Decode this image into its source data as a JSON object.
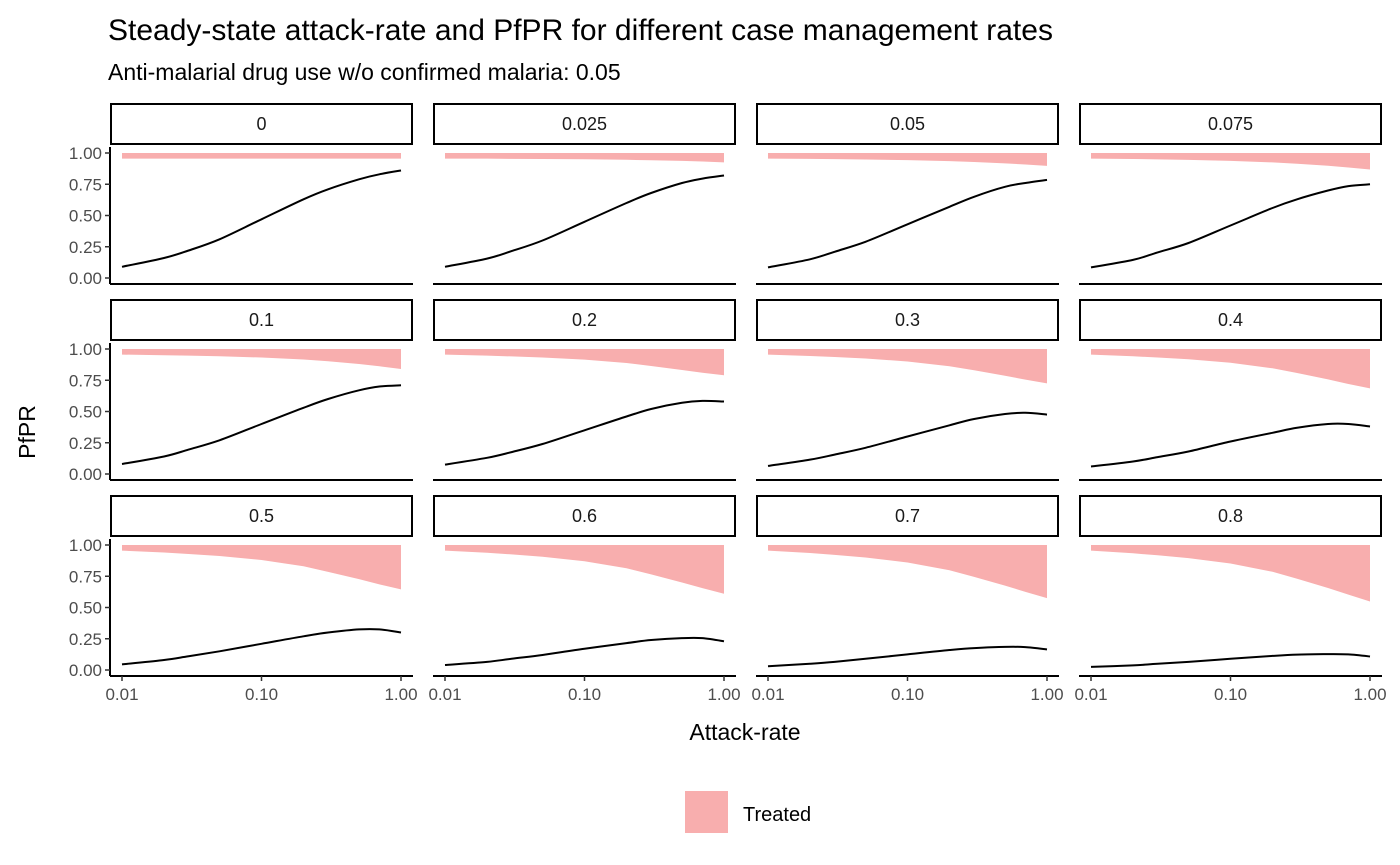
{
  "chart_data": {
    "type": "area",
    "title": "Steady-state attack-rate and PfPR for different case management rates",
    "subtitle": "Anti-malarial drug use w/o confirmed malaria: 0.05",
    "xlabel": "Attack-rate",
    "ylabel": "PfPR",
    "x_scale": "log10",
    "xlim": [
      0.01,
      1.0
    ],
    "ylim": [
      0,
      1.0
    ],
    "x_ticks": [
      0.01,
      0.1,
      1.0
    ],
    "x_tick_labels": [
      "0.01",
      "0.10",
      "1.00"
    ],
    "y_ticks": [
      0,
      0.25,
      0.5,
      0.75,
      1.0
    ],
    "y_tick_labels": [
      "0.00",
      "0.25",
      "0.50",
      "0.75",
      "1.00"
    ],
    "grid": false,
    "legend": {
      "position": "bottom",
      "entries": [
        {
          "label": "Treated",
          "color": "#f8aeae"
        }
      ]
    },
    "colors": {
      "treated_fill": "#f8aeae",
      "line": "#000000"
    },
    "x": [
      0.01,
      0.02,
      0.03,
      0.05,
      0.1,
      0.2,
      0.3,
      0.5,
      0.7,
      1.0
    ],
    "panels": [
      {
        "label": "0",
        "pfpr": [
          0.09,
          0.16,
          0.22,
          0.31,
          0.47,
          0.63,
          0.71,
          0.79,
          0.83,
          0.86
        ],
        "treated_lower": [
          0.955,
          0.955,
          0.955,
          0.955,
          0.955,
          0.955,
          0.955,
          0.955,
          0.955,
          0.955
        ]
      },
      {
        "label": "0.025",
        "pfpr": [
          0.09,
          0.155,
          0.215,
          0.3,
          0.45,
          0.6,
          0.68,
          0.76,
          0.795,
          0.82
        ],
        "treated_lower": [
          0.955,
          0.955,
          0.953,
          0.952,
          0.95,
          0.946,
          0.942,
          0.937,
          0.932,
          0.925
        ]
      },
      {
        "label": "0.05",
        "pfpr": [
          0.085,
          0.15,
          0.21,
          0.29,
          0.43,
          0.57,
          0.65,
          0.73,
          0.76,
          0.785
        ],
        "treated_lower": [
          0.955,
          0.953,
          0.951,
          0.948,
          0.943,
          0.935,
          0.928,
          0.917,
          0.908,
          0.897
        ]
      },
      {
        "label": "0.075",
        "pfpr": [
          0.085,
          0.145,
          0.205,
          0.28,
          0.42,
          0.56,
          0.63,
          0.7,
          0.735,
          0.75
        ],
        "treated_lower": [
          0.955,
          0.952,
          0.949,
          0.945,
          0.937,
          0.925,
          0.914,
          0.898,
          0.884,
          0.868
        ]
      },
      {
        "label": "0.1",
        "pfpr": [
          0.08,
          0.14,
          0.195,
          0.27,
          0.4,
          0.53,
          0.6,
          0.67,
          0.7,
          0.71
        ],
        "treated_lower": [
          0.955,
          0.95,
          0.947,
          0.942,
          0.932,
          0.916,
          0.902,
          0.88,
          0.862,
          0.84
        ]
      },
      {
        "label": "0.2",
        "pfpr": [
          0.075,
          0.13,
          0.175,
          0.24,
          0.35,
          0.46,
          0.52,
          0.57,
          0.585,
          0.58
        ],
        "treated_lower": [
          0.955,
          0.947,
          0.941,
          0.932,
          0.915,
          0.888,
          0.864,
          0.832,
          0.81,
          0.79
        ]
      },
      {
        "label": "0.3",
        "pfpr": [
          0.065,
          0.115,
          0.155,
          0.21,
          0.3,
          0.39,
          0.44,
          0.48,
          0.49,
          0.475
        ],
        "treated_lower": [
          0.955,
          0.944,
          0.936,
          0.924,
          0.9,
          0.862,
          0.83,
          0.786,
          0.755,
          0.725
        ]
      },
      {
        "label": "0.4",
        "pfpr": [
          0.06,
          0.1,
          0.135,
          0.18,
          0.26,
          0.33,
          0.37,
          0.4,
          0.4,
          0.38
        ],
        "treated_lower": [
          0.955,
          0.942,
          0.932,
          0.918,
          0.89,
          0.846,
          0.808,
          0.757,
          0.72,
          0.685
        ]
      },
      {
        "label": "0.5",
        "pfpr": [
          0.045,
          0.08,
          0.11,
          0.15,
          0.21,
          0.27,
          0.3,
          0.325,
          0.325,
          0.3
        ],
        "treated_lower": [
          0.955,
          0.94,
          0.928,
          0.912,
          0.88,
          0.83,
          0.785,
          0.727,
          0.685,
          0.645
        ]
      },
      {
        "label": "0.6",
        "pfpr": [
          0.04,
          0.065,
          0.09,
          0.12,
          0.17,
          0.215,
          0.24,
          0.255,
          0.255,
          0.23
        ],
        "treated_lower": [
          0.955,
          0.938,
          0.925,
          0.906,
          0.87,
          0.814,
          0.765,
          0.7,
          0.655,
          0.61
        ]
      },
      {
        "label": "0.7",
        "pfpr": [
          0.03,
          0.05,
          0.065,
          0.09,
          0.125,
          0.16,
          0.175,
          0.185,
          0.183,
          0.165
        ],
        "treated_lower": [
          0.955,
          0.936,
          0.921,
          0.9,
          0.86,
          0.798,
          0.745,
          0.675,
          0.625,
          0.575
        ]
      },
      {
        "label": "0.8",
        "pfpr": [
          0.025,
          0.037,
          0.05,
          0.065,
          0.09,
          0.113,
          0.123,
          0.127,
          0.125,
          0.108
        ],
        "treated_lower": [
          0.955,
          0.934,
          0.918,
          0.895,
          0.852,
          0.786,
          0.73,
          0.656,
          0.603,
          0.548
        ]
      }
    ]
  }
}
